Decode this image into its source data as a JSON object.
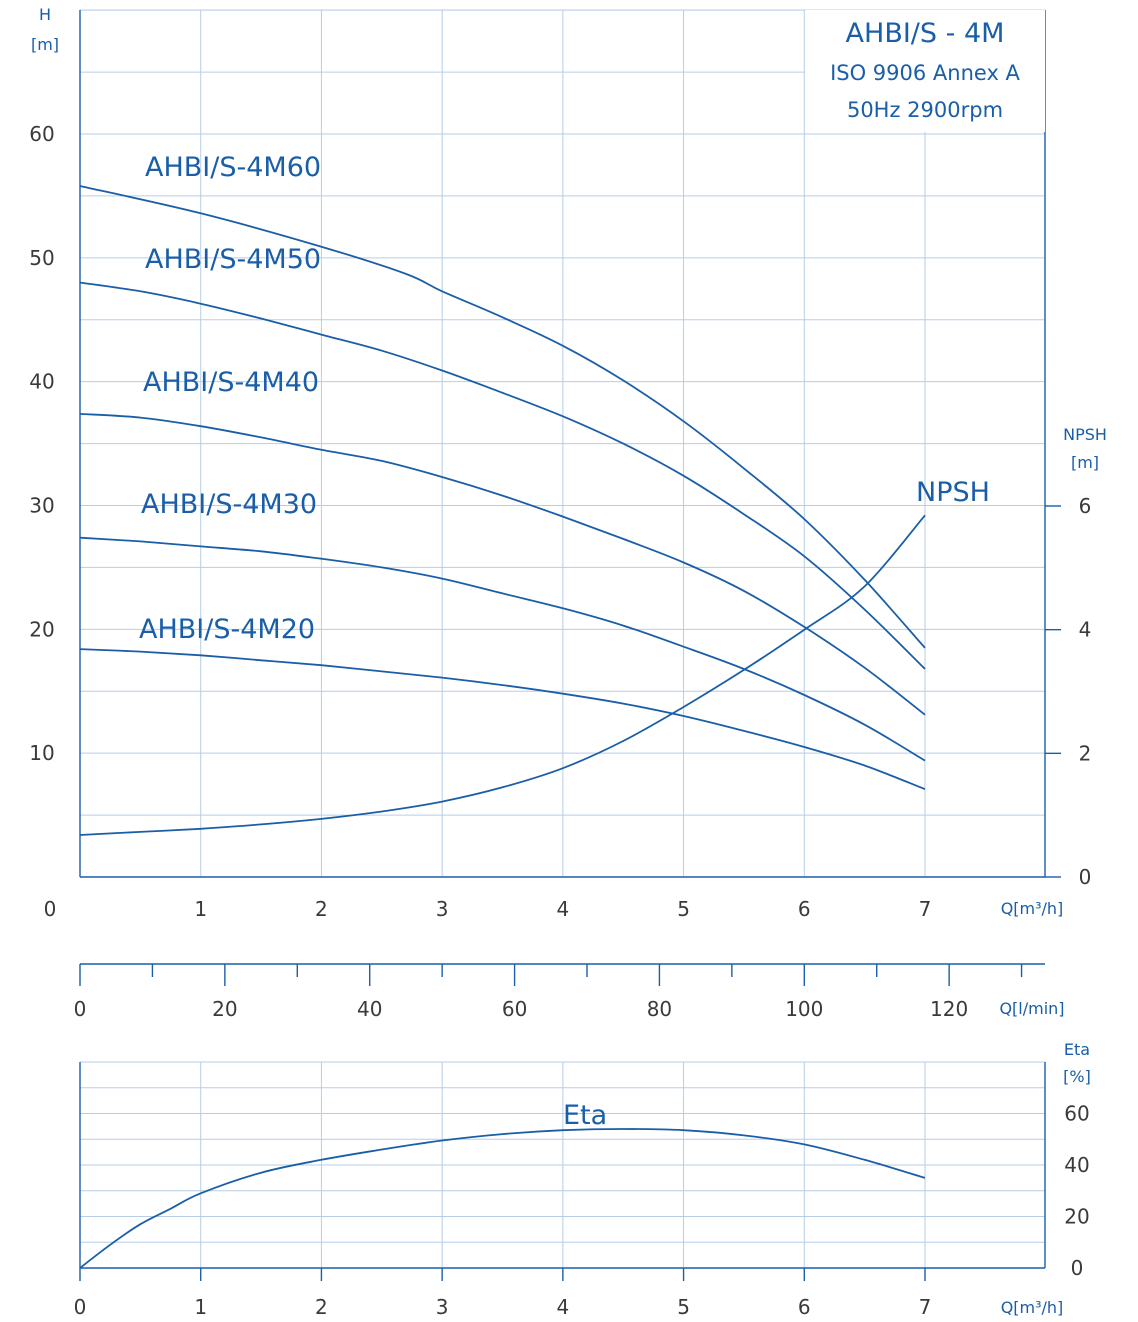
{
  "colors": {
    "accent": "#1a5ea8",
    "grid": "#b7cde6",
    "tick_text": "#3a3a3a"
  },
  "title_box": {
    "title": "AHBI/S - 4M",
    "standard": "ISO 9906 Annex A",
    "conditions": "50Hz 2900rpm"
  },
  "chart_data": [
    {
      "type": "line",
      "name_panel": "head",
      "ylabel": "H",
      "yunit": "[m]",
      "xlabel": "Q[m³/h]",
      "xlim": [
        0,
        8
      ],
      "ylim": [
        0,
        60
      ],
      "x_ticks": [
        "0",
        "1",
        "2",
        "3",
        "4",
        "5",
        "6",
        "7"
      ],
      "y_ticks": [
        "10",
        "20",
        "30",
        "40",
        "50",
        "60"
      ],
      "grid": true,
      "series": [
        {
          "name": "AHBI/S-4M60",
          "x": [
            0,
            1,
            2,
            2.7,
            3,
            3.5,
            4,
            4.5,
            5,
            5.5,
            6,
            6.5,
            7
          ],
          "y": [
            55.8,
            53.6,
            50.9,
            48.7,
            47.3,
            45.2,
            42.9,
            40.1,
            36.8,
            33.0,
            28.9,
            24.0,
            18.5
          ]
        },
        {
          "name": "AHBI/S-4M50",
          "x": [
            0,
            0.5,
            1,
            1.5,
            2,
            2.5,
            3,
            3.5,
            4,
            4.5,
            5,
            5.5,
            6,
            6.5,
            7
          ],
          "y": [
            48.0,
            47.3,
            46.3,
            45.1,
            43.8,
            42.5,
            40.9,
            39.1,
            37.2,
            35.0,
            32.4,
            29.3,
            25.9,
            21.6,
            16.8
          ]
        },
        {
          "name": "AHBI/S-4M40",
          "x": [
            0,
            0.5,
            1,
            1.5,
            2,
            2.5,
            3,
            3.5,
            4,
            4.5,
            5,
            5.5,
            6,
            6.5,
            7
          ],
          "y": [
            37.4,
            37.1,
            36.4,
            35.5,
            34.5,
            33.6,
            32.3,
            30.8,
            29.1,
            27.3,
            25.4,
            23.1,
            20.2,
            16.9,
            13.1
          ]
        },
        {
          "name": "AHBI/S-4M30",
          "x": [
            0,
            0.5,
            1,
            1.5,
            2,
            2.5,
            3,
            3.5,
            4,
            4.5,
            5,
            5.5,
            6,
            6.5,
            7
          ],
          "y": [
            27.4,
            27.1,
            26.7,
            26.3,
            25.7,
            25.0,
            24.1,
            22.9,
            21.7,
            20.3,
            18.6,
            16.8,
            14.7,
            12.3,
            9.4
          ]
        },
        {
          "name": "AHBI/S-4M20",
          "x": [
            0,
            0.5,
            1,
            1.5,
            2,
            2.5,
            3,
            3.5,
            4,
            4.5,
            5,
            5.5,
            6,
            6.5,
            7
          ],
          "y": [
            18.4,
            18.2,
            17.9,
            17.5,
            17.1,
            16.6,
            16.1,
            15.5,
            14.8,
            14.0,
            13.0,
            11.8,
            10.5,
            9.0,
            7.1
          ]
        }
      ]
    },
    {
      "type": "line",
      "name_panel": "npsh",
      "ylabel": "NPSH",
      "yunit": "[m]",
      "ylim": [
        0,
        6
      ],
      "y_ticks": [
        "0",
        "2",
        "4",
        "6"
      ],
      "series": [
        {
          "name": "NPSH",
          "x": [
            0,
            0.5,
            1,
            1.5,
            2,
            2.5,
            3,
            3.5,
            4,
            4.5,
            5,
            5.5,
            6,
            6.5,
            7
          ],
          "y": [
            0.68,
            0.73,
            0.78,
            0.85,
            0.94,
            1.06,
            1.22,
            1.45,
            1.76,
            2.2,
            2.75,
            3.35,
            4.0,
            4.7,
            5.85
          ]
        }
      ]
    },
    {
      "type": "axis",
      "name_panel": "flow-lmin",
      "xlabel": "Q[l/min]",
      "xlim": [
        0,
        133.33
      ],
      "x_ticks": [
        "0",
        "20",
        "40",
        "60",
        "80",
        "100",
        "120"
      ]
    },
    {
      "type": "line",
      "name_panel": "efficiency",
      "ylabel": "Eta",
      "yunit": "[%]",
      "xlabel": "Q[m³/h]",
      "xlim": [
        0,
        8
      ],
      "ylim": [
        0,
        80
      ],
      "x_ticks": [
        "0",
        "1",
        "2",
        "3",
        "4",
        "5",
        "6",
        "7"
      ],
      "y_ticks": [
        "0",
        "20",
        "40",
        "60"
      ],
      "grid": true,
      "series": [
        {
          "name": "Eta",
          "x": [
            0,
            0.25,
            0.5,
            0.75,
            1,
            1.5,
            2,
            2.5,
            3,
            3.5,
            4,
            4.5,
            5,
            5.5,
            6,
            6.5,
            7
          ],
          "y": [
            0,
            9,
            17,
            23,
            29,
            37,
            42,
            46,
            49.5,
            52,
            53.5,
            54,
            53.5,
            51.5,
            48,
            42,
            35
          ]
        }
      ]
    }
  ]
}
